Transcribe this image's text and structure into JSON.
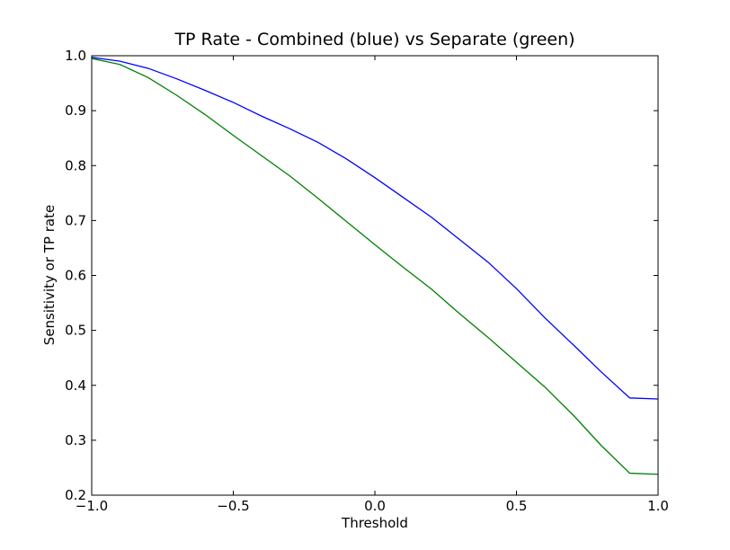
{
  "chart_data": {
    "type": "line",
    "title": "TP Rate - Combined (blue) vs Separate (green)",
    "xlabel": "Threshold",
    "ylabel": "Sensitivity or TP rate",
    "xlim": [
      -1.0,
      1.0
    ],
    "ylim": [
      0.2,
      1.0
    ],
    "x_ticks": [
      -1.0,
      -0.5,
      0.0,
      0.5,
      1.0
    ],
    "x_tick_labels": [
      "−1.0",
      "−0.5",
      "0.0",
      "0.5",
      "1.0"
    ],
    "y_ticks": [
      0.2,
      0.3,
      0.4,
      0.5,
      0.6,
      0.7,
      0.8,
      0.9,
      1.0
    ],
    "y_tick_labels": [
      "0.2",
      "0.3",
      "0.4",
      "0.5",
      "0.6",
      "0.7",
      "0.8",
      "0.9",
      "1.0"
    ],
    "grid": false,
    "x": [
      -1.0,
      -0.9,
      -0.8,
      -0.7,
      -0.6,
      -0.5,
      -0.4,
      -0.3,
      -0.2,
      -0.1,
      0.0,
      0.1,
      0.2,
      0.3,
      0.4,
      0.5,
      0.6,
      0.7,
      0.8,
      0.9,
      1.0
    ],
    "series": [
      {
        "color": "#0000ff",
        "values": [
          0.997,
          0.99,
          0.977,
          0.958,
          0.937,
          0.915,
          0.89,
          0.867,
          0.842,
          0.812,
          0.778,
          0.742,
          0.706,
          0.665,
          0.624,
          0.576,
          0.523,
          0.474,
          0.424,
          0.377,
          0.375
        ]
      },
      {
        "color": "#008000",
        "values": [
          0.995,
          0.984,
          0.96,
          0.928,
          0.893,
          0.855,
          0.818,
          0.781,
          0.74,
          0.698,
          0.656,
          0.615,
          0.575,
          0.53,
          0.487,
          0.442,
          0.397,
          0.346,
          0.29,
          0.24,
          0.238
        ]
      }
    ]
  }
}
